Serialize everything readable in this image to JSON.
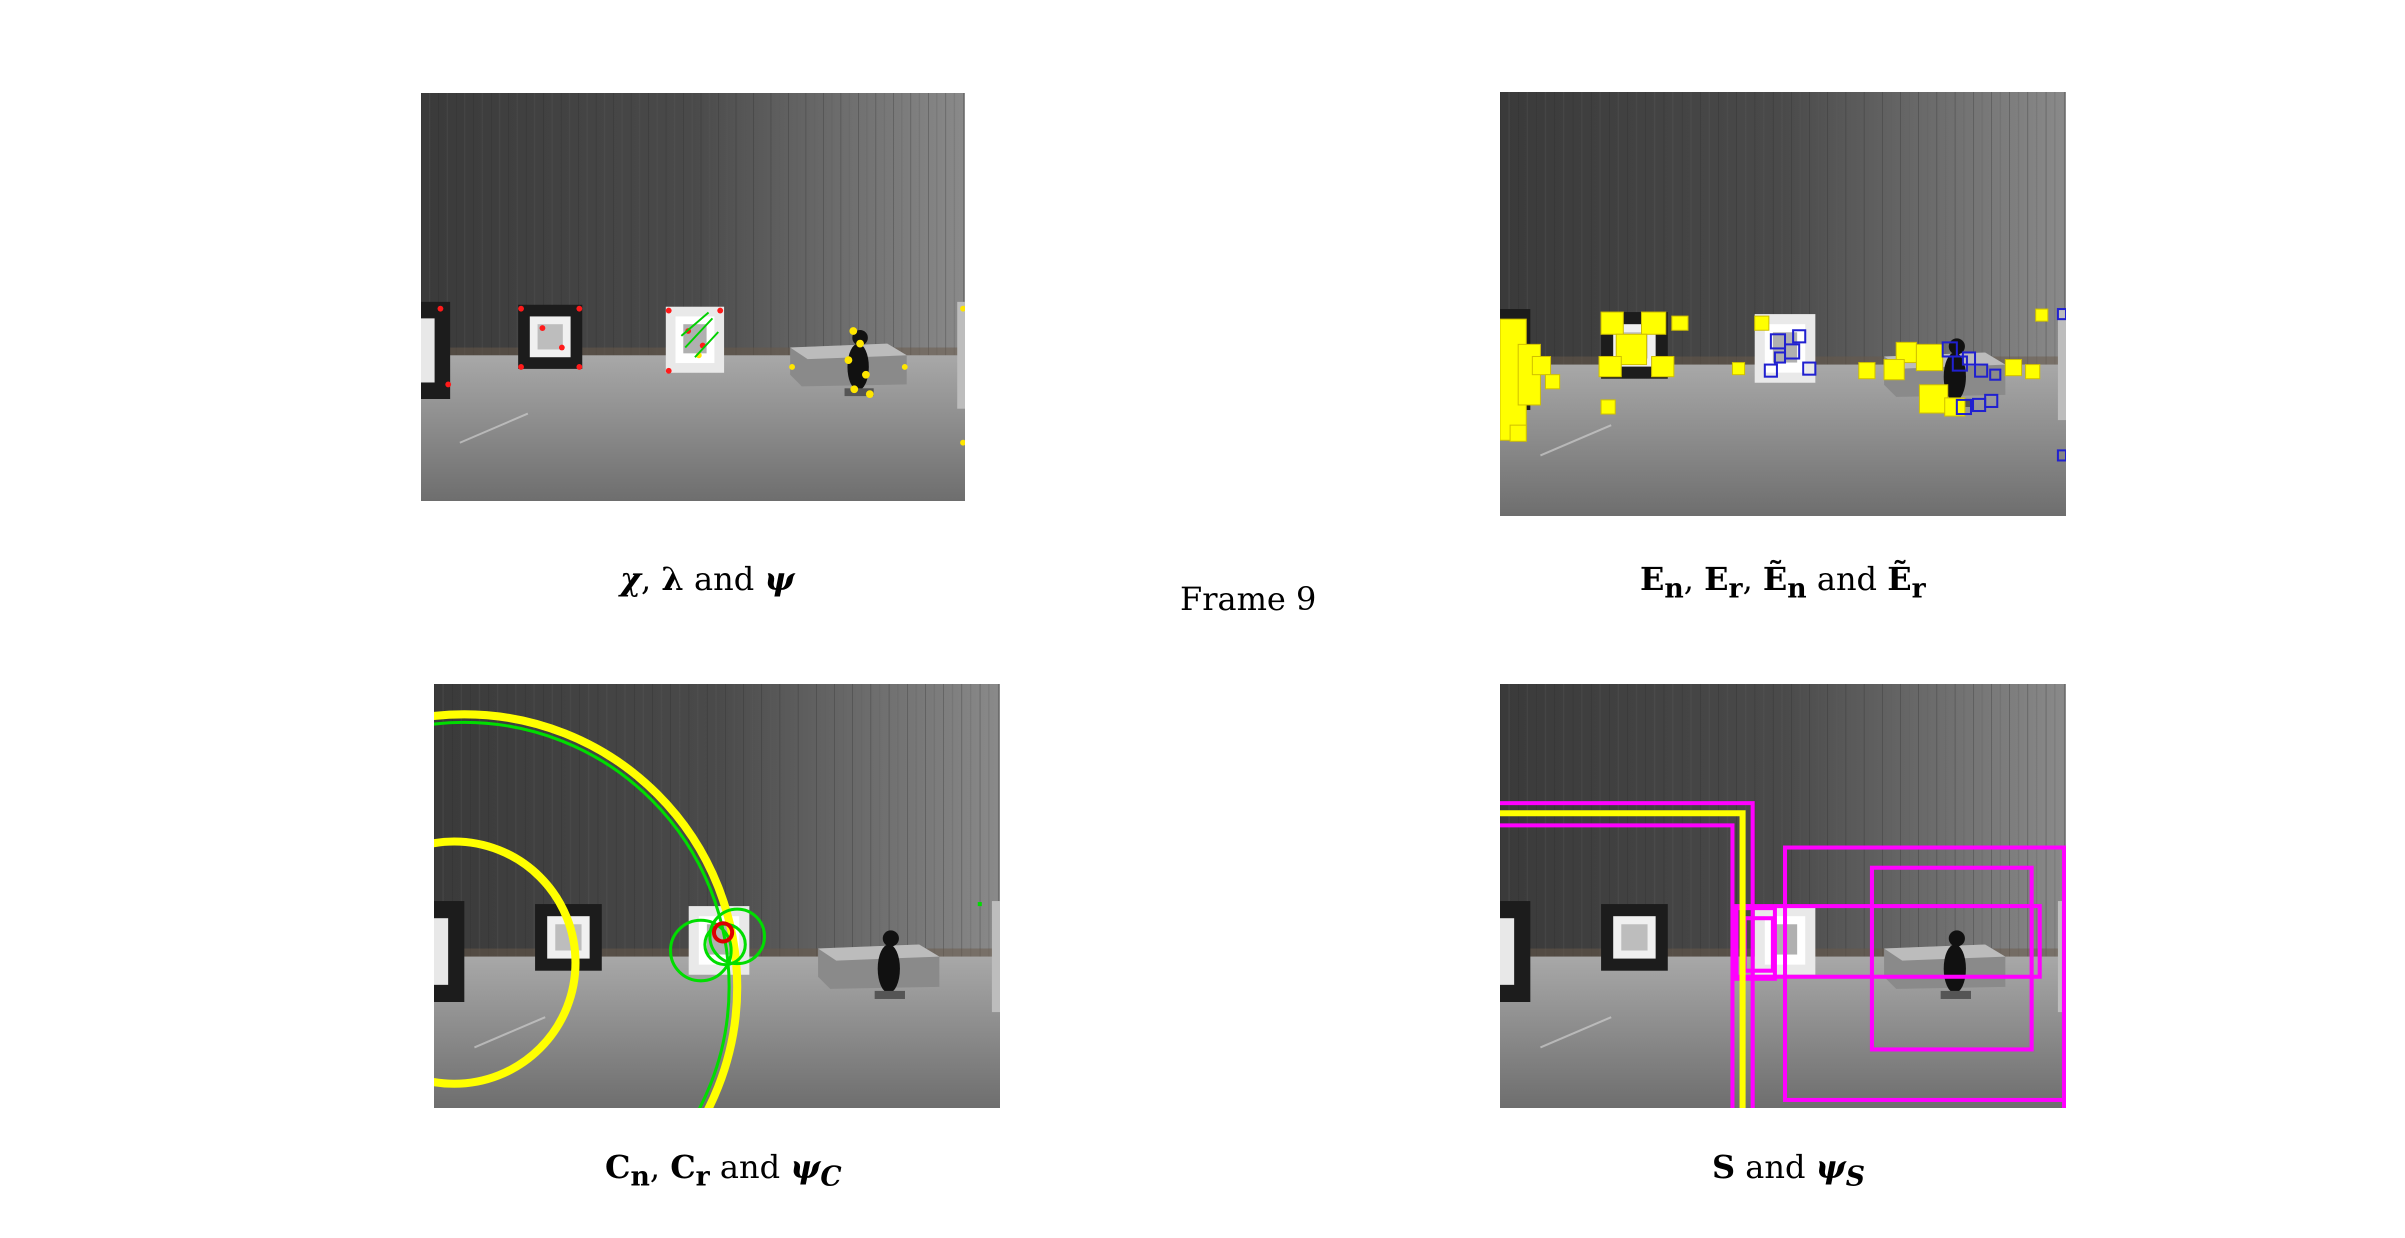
{
  "frame_label": "Frame 9",
  "panels": {
    "top_left": {
      "caption": {
        "p1": "χ",
        "s1": ", ",
        "p2": "λ",
        "s2": " and ",
        "p3": "ψ"
      },
      "overlay_colors": {
        "features": "#ff1a1a",
        "matches": "#ffe600",
        "flow": "#00d000"
      }
    },
    "top_right": {
      "caption": {
        "b1": "E",
        "sub1": "n",
        "s1": ", ",
        "b2": "E",
        "sub2": "r",
        "s2": ", ",
        "b3": "Ẽ",
        "sub3": "n",
        "s3": " and ",
        "b4": "Ẽ",
        "sub4": "r"
      },
      "overlay_colors": {
        "yellow_boxes": "#ffff00",
        "blue_boxes": "#2020d0"
      }
    },
    "bottom_left": {
      "caption": {
        "b1": "C",
        "sub1": "n",
        "s1": ", ",
        "b2": "C",
        "sub2": "r",
        "s2": " and ",
        "p1": "ψ",
        "sub3": "C"
      },
      "overlay_colors": {
        "yellow_circles": "#ffff00",
        "green_circles": "#00dd00",
        "red_circle": "#dd0000"
      }
    },
    "bottom_right": {
      "caption": {
        "b1": "S",
        "s1": " and ",
        "p1": "ψ",
        "sub1": "S"
      },
      "overlay_colors": {
        "magenta_boxes": "#ff00ff",
        "yellow_box": "#ffff00"
      }
    }
  }
}
